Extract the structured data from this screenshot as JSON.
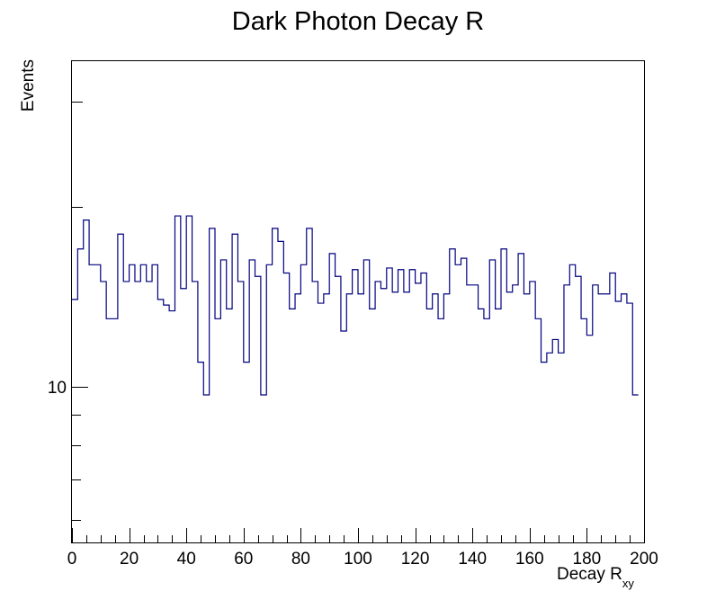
{
  "chart_data": {
    "type": "histogram",
    "title": "Dark Photon Decay R",
    "xlabel_main": "Decay R",
    "xlabel_sub": "xy",
    "ylabel": "Events",
    "xlim": [
      0,
      200
    ],
    "ylim": [
      5.5,
      35
    ],
    "yscale": "log",
    "bin_width": 2,
    "x_ticks": [
      0,
      20,
      40,
      60,
      80,
      100,
      120,
      140,
      160,
      180,
      200
    ],
    "y_tick_labels": [
      {
        "value": 10,
        "label": "10"
      }
    ],
    "line_color": "#000080",
    "values": [
      14,
      17,
      19,
      16,
      16,
      15,
      13,
      13,
      18,
      15,
      16,
      15,
      16,
      15,
      16,
      14,
      13.7,
      13.4,
      19.3,
      14.6,
      19.3,
      15,
      11,
      9.7,
      18.4,
      13,
      16.3,
      13.5,
      18,
      15,
      11,
      16.3,
      15.3,
      9.7,
      16,
      18.4,
      17.5,
      15.5,
      13.5,
      14.3,
      16,
      18.4,
      15,
      13.8,
      14.3,
      16.7,
      15.3,
      12.4,
      14.3,
      15.7,
      14.3,
      16.3,
      13.5,
      15,
      14.6,
      15.8,
      14.4,
      15.7,
      14.4,
      15.7,
      14.9,
      15.5,
      13.5,
      14.3,
      13,
      14.3,
      17,
      16,
      16.4,
      14.8,
      14.8,
      13.5,
      13,
      16.3,
      13.5,
      17,
      14.4,
      14.8,
      16.7,
      14.3,
      15,
      13,
      11,
      11.4,
      12,
      11.4,
      14.8,
      16,
      15.3,
      13,
      12.2,
      14.8,
      14.3,
      14.3,
      15.5,
      13.9,
      14.3,
      13.8,
      9.7
    ]
  }
}
